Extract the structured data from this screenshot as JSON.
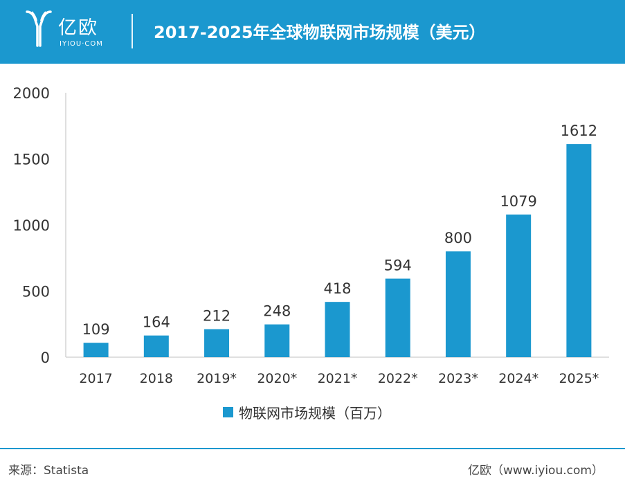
{
  "header": {
    "logo_text": "亿欧",
    "logo_sub": "IYIOU·COM",
    "title": "2017-2025年全球物联网市场规模（美元）"
  },
  "colors": {
    "brand": "#1b98cf",
    "bar": "#1b98cf"
  },
  "icons": {
    "logo": "yiou-logo-icon"
  },
  "chart_data": {
    "type": "bar",
    "title": "2017-2025年全球物联网市场规模（美元）",
    "categories": [
      "2017",
      "2018",
      "2019*",
      "2020*",
      "2021*",
      "2022*",
      "2023*",
      "2024*",
      "2025*"
    ],
    "series": [
      {
        "name": "物联网市场规模（百万）",
        "values": [
          109,
          164,
          212,
          248,
          418,
          594,
          800,
          1079,
          1612
        ]
      }
    ],
    "ylim": [
      0,
      2000
    ],
    "yticks": [
      "0",
      "500",
      "1000",
      "1500",
      "2000"
    ],
    "grid": false,
    "legend_position": "bottom-center",
    "data_labels": true
  },
  "legend": {
    "label": "物联网市场规模（百万）"
  },
  "footer": {
    "source": "来源：Statista",
    "site": "亿欧（www.iyiou.com）"
  }
}
